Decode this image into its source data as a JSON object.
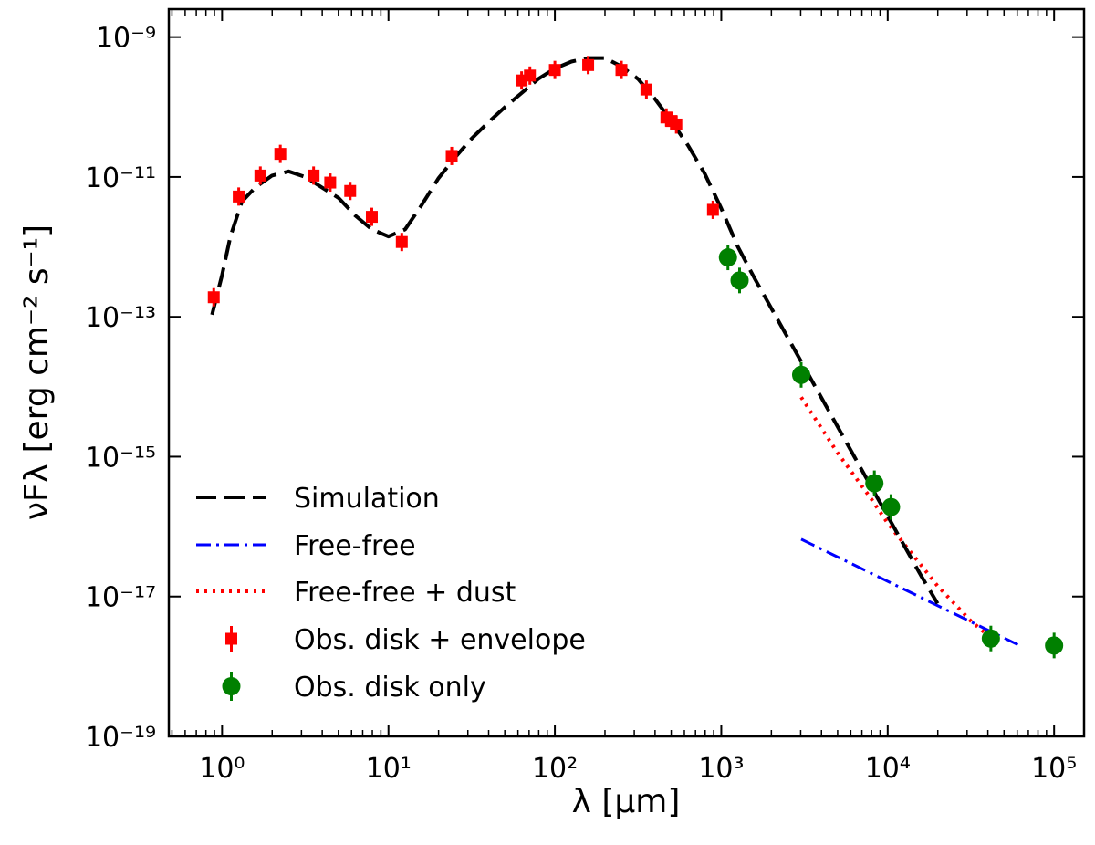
{
  "chart_data": {
    "type": "scatter",
    "title": "",
    "xlabel": "λ [μm]",
    "ylabel": "νFλ [erg cm⁻² s⁻¹]",
    "xscale": "log",
    "yscale": "log",
    "xlim_log10": [
      -0.32,
      5.18
    ],
    "ylim_log10": [
      -19,
      -8.6
    ],
    "x_tick_exponents": [
      0,
      1,
      2,
      3,
      4,
      5
    ],
    "y_tick_exponents": [
      -19,
      -17,
      -15,
      -13,
      -11,
      -9
    ],
    "x_tick_labels": [
      "10⁰",
      "10¹",
      "10²",
      "10³",
      "10⁴",
      "10⁵"
    ],
    "y_tick_labels": [
      "10⁻¹⁹",
      "10⁻¹⁷",
      "10⁻¹⁵",
      "10⁻¹³",
      "10⁻¹¹",
      "10⁻⁹"
    ],
    "legend_position": "lower-left",
    "series": [
      {
        "name": "Simulation",
        "kind": "line",
        "style": "dashed",
        "color": "#000000",
        "log_lambda": [
          -0.06,
          0.0,
          0.05,
          0.12,
          0.2,
          0.3,
          0.4,
          0.5,
          0.6,
          0.7,
          0.8,
          0.9,
          1.0,
          1.1,
          1.2,
          1.3,
          1.4,
          1.5,
          1.6,
          1.7,
          1.8,
          1.9,
          2.0,
          2.1,
          2.2,
          2.3,
          2.4,
          2.5,
          2.6,
          2.7,
          2.8,
          2.9,
          3.0,
          3.1,
          3.2,
          3.4,
          3.6,
          3.8,
          4.0,
          4.2,
          4.3
        ],
        "log_flux": [
          -12.97,
          -12.4,
          -11.85,
          -11.35,
          -11.15,
          -10.98,
          -10.92,
          -11.0,
          -11.15,
          -11.3,
          -11.55,
          -11.75,
          -11.85,
          -11.75,
          -11.4,
          -11.02,
          -10.72,
          -10.45,
          -10.22,
          -10.0,
          -9.8,
          -9.6,
          -9.45,
          -9.35,
          -9.3,
          -9.3,
          -9.42,
          -9.6,
          -9.88,
          -10.2,
          -10.55,
          -10.95,
          -11.45,
          -12.0,
          -12.45,
          -13.3,
          -14.15,
          -15.0,
          -15.85,
          -16.7,
          -17.1
        ]
      },
      {
        "name": "Free-free",
        "kind": "line",
        "style": "dash-dot",
        "color": "#0000ff",
        "log_lambda": [
          3.48,
          4.81
        ],
        "log_flux": [
          -16.18,
          -17.72
        ]
      },
      {
        "name": "Free-free + dust",
        "kind": "line",
        "style": "dotted",
        "color": "#ff0000",
        "log_lambda": [
          3.48,
          3.7,
          3.9,
          4.0,
          4.1,
          4.2,
          4.3,
          4.4,
          4.5,
          4.6
        ],
        "log_flux": [
          -14.15,
          -14.95,
          -15.6,
          -15.95,
          -16.25,
          -16.55,
          -16.85,
          -17.1,
          -17.35,
          -17.55
        ]
      },
      {
        "name": "Obs. disk + envelope",
        "kind": "points",
        "marker": "square",
        "color": "#ff0000",
        "log_lambda": [
          -0.05,
          0.1,
          0.23,
          0.35,
          0.55,
          0.65,
          0.77,
          0.9,
          1.08,
          1.38,
          1.8,
          1.85,
          2.0,
          2.2,
          2.4,
          2.55,
          2.67,
          2.7,
          2.73,
          2.95
        ],
        "log_flux": [
          -12.72,
          -11.28,
          -10.98,
          -10.67,
          -10.98,
          -11.08,
          -11.2,
          -11.57,
          -11.93,
          -10.7,
          -9.62,
          -9.55,
          -9.47,
          -9.4,
          -9.47,
          -9.75,
          -10.15,
          -10.2,
          -10.25,
          -11.47
        ]
      },
      {
        "name": "Obs. disk only",
        "kind": "points",
        "marker": "circle",
        "color": "#008000",
        "log_lambda": [
          3.04,
          3.11,
          3.48,
          3.92,
          4.02,
          4.62,
          5.0
        ],
        "log_flux": [
          -12.15,
          -12.48,
          -13.83,
          -15.38,
          -15.72,
          -17.6,
          -17.7
        ]
      }
    ]
  }
}
